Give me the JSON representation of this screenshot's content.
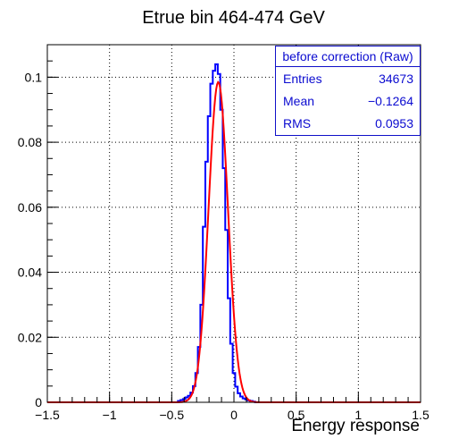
{
  "chart_data": {
    "type": "histogram",
    "title": "Etrue bin 464-474 GeV",
    "xlabel": "Energy response",
    "ylabel": "",
    "xlim": [
      -1.5,
      1.5
    ],
    "ylim": [
      0,
      0.11
    ],
    "xticks": [
      "−1.5",
      "−1",
      "−0.5",
      "0",
      "0.5",
      "1",
      "1.5"
    ],
    "yticks": [
      "0",
      "0.02",
      "0.04",
      "0.06",
      "0.08",
      "0.1"
    ],
    "grid": true,
    "stats": {
      "header": "before correction (Raw)",
      "rows": [
        {
          "label": "Entries",
          "value": "34673"
        },
        {
          "label": "Mean",
          "value": "−0.1264"
        },
        {
          "label": "RMS",
          "value": "0.0953"
        }
      ]
    },
    "colors": {
      "histogram": "#0000ff",
      "fit": "#ff0000",
      "stats_text": "#0b0bd0"
    },
    "series": [
      {
        "kind": "step",
        "bin_width": 0.02,
        "x": [
          -0.44,
          -0.42,
          -0.4,
          -0.38,
          -0.36,
          -0.34,
          -0.32,
          -0.3,
          -0.28,
          -0.26,
          -0.24,
          -0.22,
          -0.2,
          -0.18,
          -0.16,
          -0.14,
          -0.12,
          -0.1,
          -0.08,
          -0.06,
          -0.04,
          -0.02,
          0.0,
          0.02,
          0.04,
          0.06,
          0.08,
          0.1,
          0.12,
          0.14,
          0.16
        ],
        "values": [
          0.0004,
          0.0007,
          0.001,
          0.0015,
          0.002,
          0.003,
          0.005,
          0.009,
          0.017,
          0.03,
          0.054,
          0.074,
          0.088,
          0.098,
          0.102,
          0.104,
          0.101,
          0.09,
          0.072,
          0.053,
          0.032,
          0.018,
          0.009,
          0.0048,
          0.0028,
          0.0018,
          0.0012,
          0.0009,
          0.0006,
          0.0004,
          0.0002
        ]
      },
      {
        "kind": "fit",
        "mean": -0.126,
        "sigma": 0.078,
        "amplitude": 0.0985
      }
    ]
  }
}
